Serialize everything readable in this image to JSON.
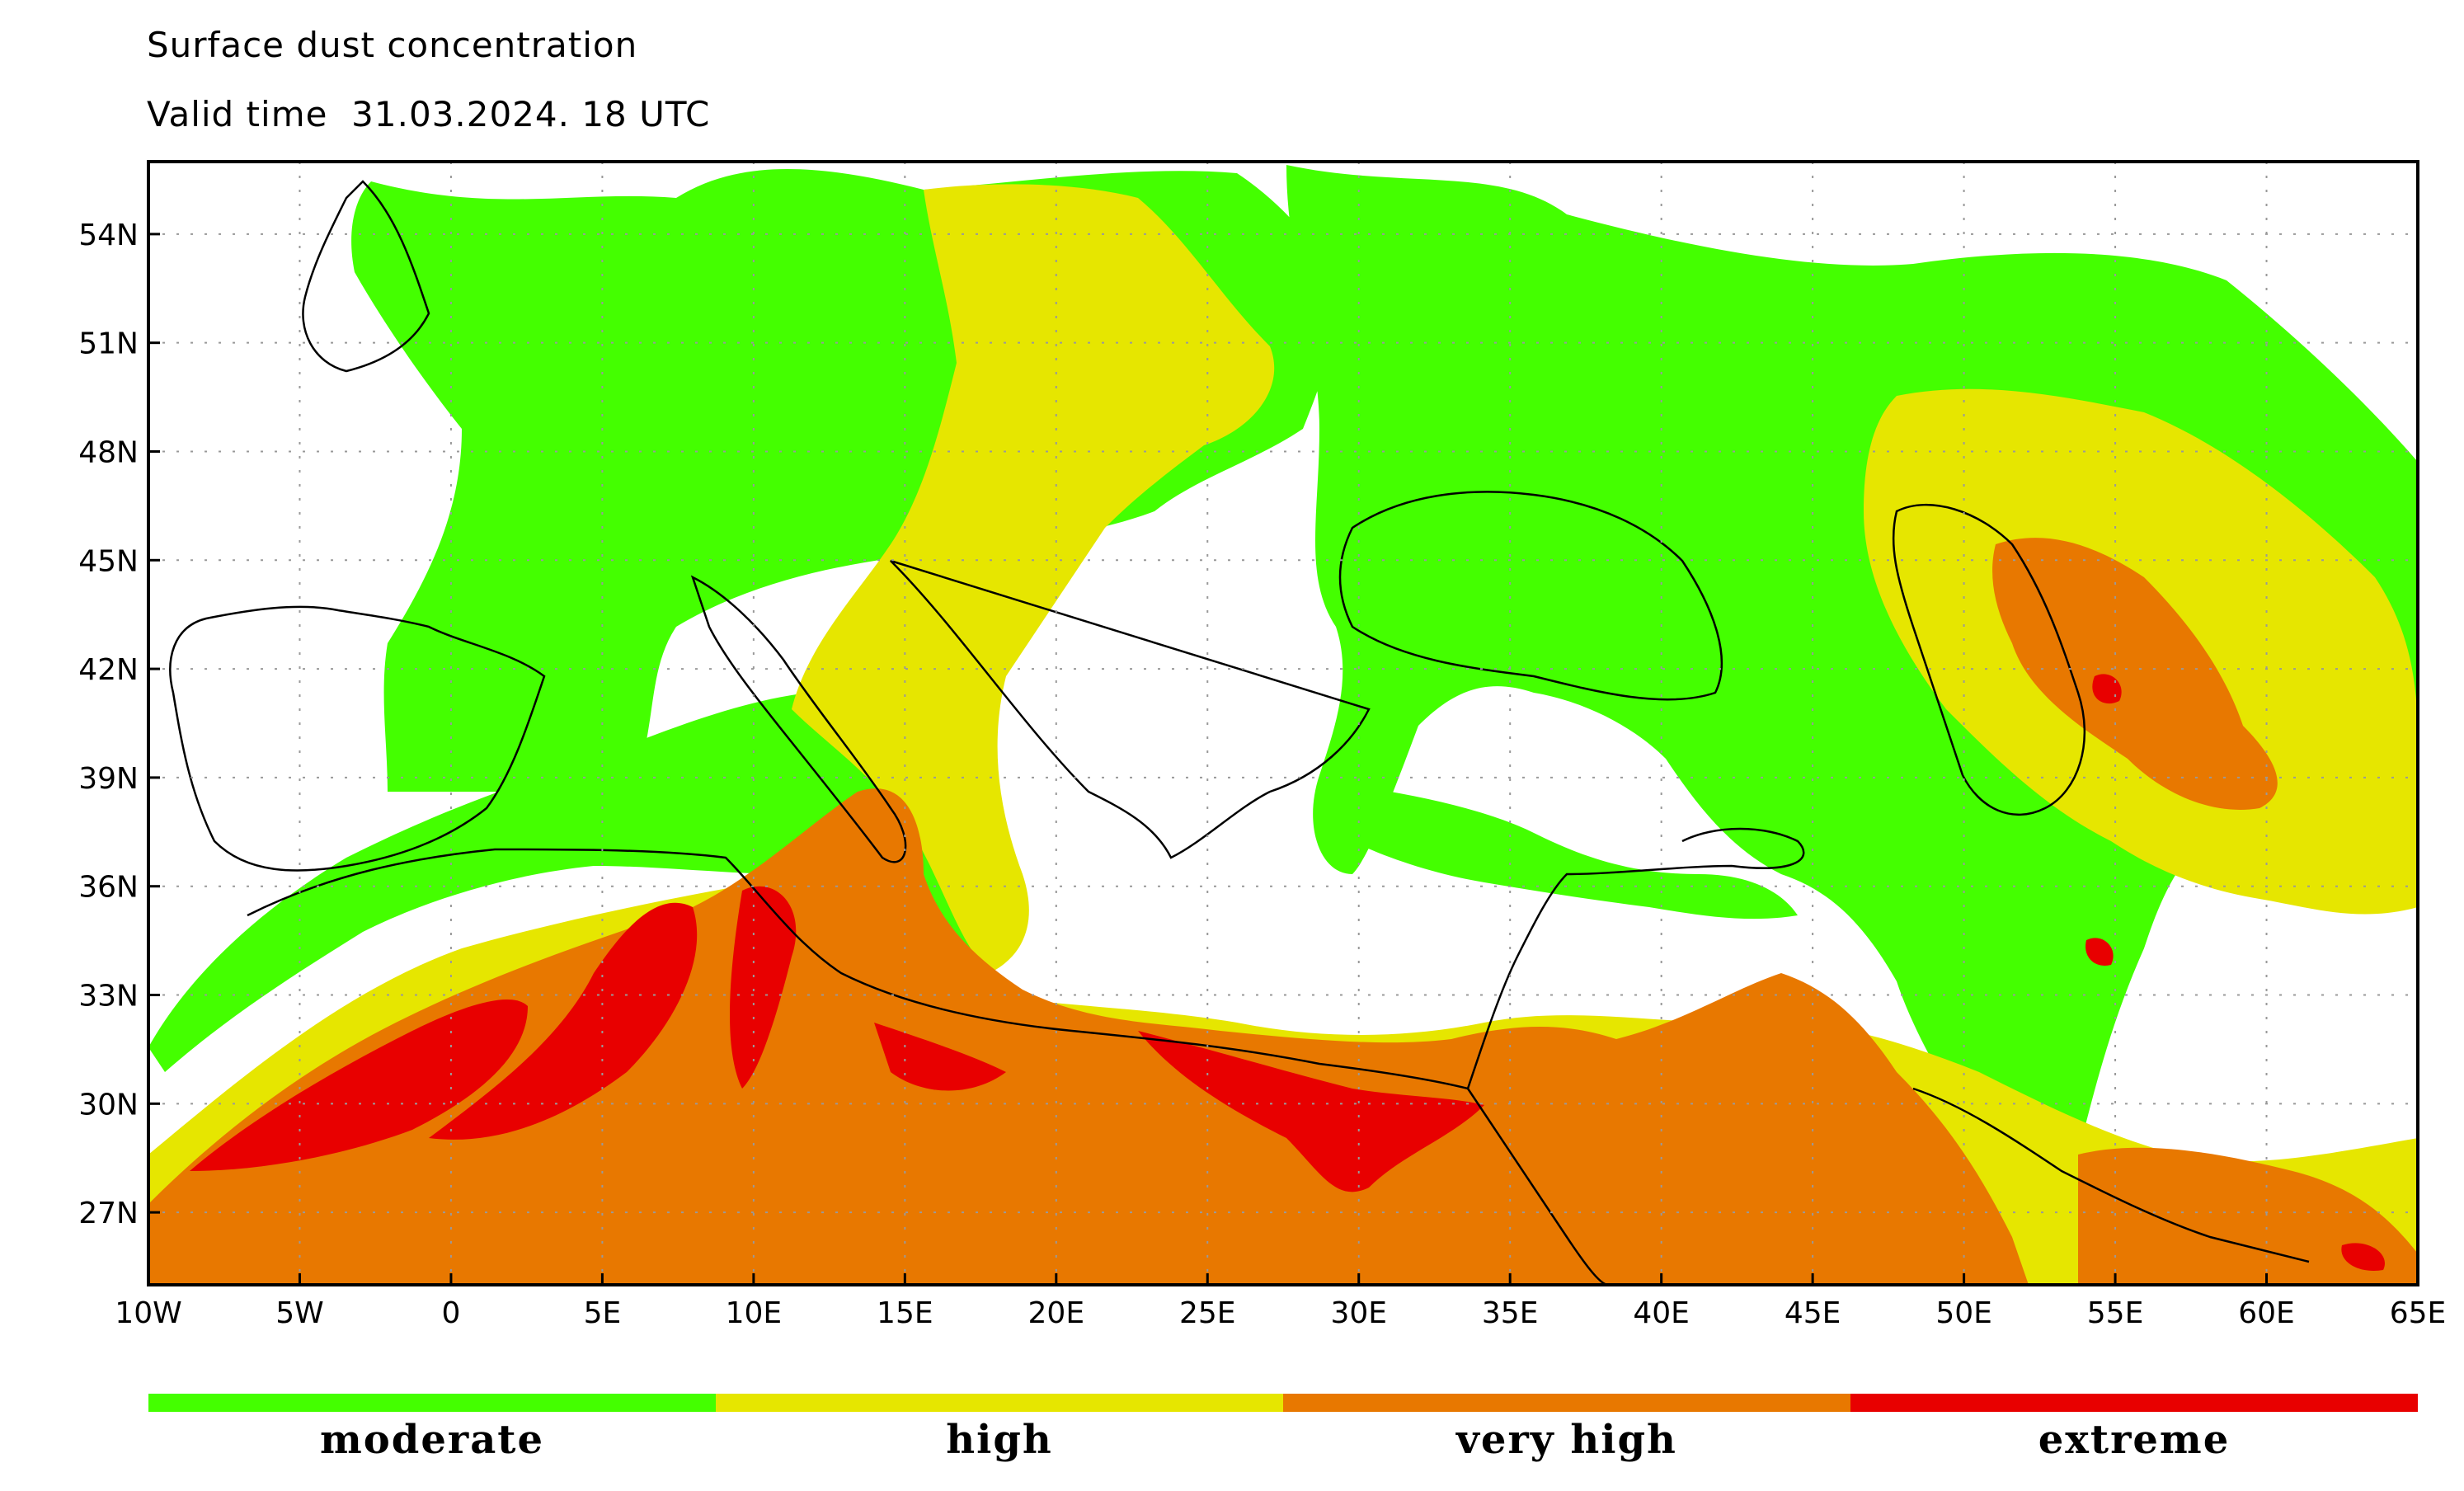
{
  "title": "Surface dust concentration",
  "valid_time": "Valid time  31.03.2024. 18 UTC",
  "axes": {
    "lon_labels": [
      "10W",
      "5W",
      "0",
      "5E",
      "10E",
      "15E",
      "20E",
      "25E",
      "30E",
      "35E",
      "40E",
      "45E",
      "50E",
      "55E",
      "60E",
      "65E"
    ],
    "lat_labels": [
      "54N",
      "51N",
      "48N",
      "45N",
      "42N",
      "39N",
      "36N",
      "33N",
      "30N",
      "27N"
    ],
    "lon_range": [
      -10,
      65
    ],
    "lat_range": [
      25,
      56
    ]
  },
  "legend": [
    {
      "label": "moderate",
      "color": "#44ff00"
    },
    {
      "label": "high",
      "color": "#e6e600"
    },
    {
      "label": "very high",
      "color": "#e87800"
    },
    {
      "label": "extreme",
      "color": "#e80000"
    }
  ],
  "grid": "dotted"
}
